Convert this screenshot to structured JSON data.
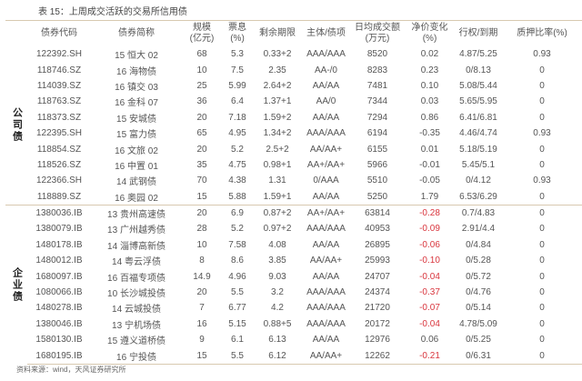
{
  "title": "表 15：上周成交活跃的交易所信用债",
  "headers": [
    "债券代码",
    "债券简称",
    "规模\n(亿元)",
    "票息\n(%)",
    "剩余期限",
    "主体/债项",
    "日均成交额\n(万元)",
    "净价变化\n(%)",
    "行权/到期",
    "质押比率(%)"
  ],
  "sections": [
    {
      "category": "公司债",
      "rows": [
        [
          "122392.SH",
          "15 恒大 02",
          "68",
          "5.3",
          "0.33+2",
          "AAA/AAA",
          "8520",
          "0.02",
          "4.87/5.25",
          "0.93"
        ],
        [
          "118746.SZ",
          "16 海物债",
          "10",
          "7.5",
          "2.35",
          "AA-/0",
          "8283",
          "0.23",
          "0/8.13",
          "0"
        ],
        [
          "114039.SZ",
          "16 镇交 03",
          "25",
          "5.99",
          "2.64+2",
          "AA/AA",
          "7481",
          "0.10",
          "5.08/5.44",
          "0"
        ],
        [
          "118763.SZ",
          "16 金科 07",
          "36",
          "6.4",
          "1.37+1",
          "AA/0",
          "7344",
          "0.03",
          "5.65/5.95",
          "0"
        ],
        [
          "118373.SZ",
          "15 安城债",
          "20",
          "7.18",
          "1.59+2",
          "AA/AA",
          "7294",
          "0.86",
          "6.41/6.81",
          "0"
        ],
        [
          "122395.SH",
          "15 富力债",
          "65",
          "4.95",
          "1.34+2",
          "AAA/AAA",
          "6194",
          "-0.35",
          "4.46/4.74",
          "0.93"
        ],
        [
          "118854.SZ",
          "16 文旅 02",
          "20",
          "5.2",
          "2.5+2",
          "AA/AA+",
          "6155",
          "0.01",
          "5.18/5.19",
          "0"
        ],
        [
          "118526.SZ",
          "16 中置 01",
          "35",
          "4.75",
          "0.98+1",
          "AA+/AA+",
          "5966",
          "-0.01",
          "5.45/5.1",
          "0"
        ],
        [
          "122366.SH",
          "14 武钢债",
          "70",
          "4.38",
          "1.31",
          "0/AAA",
          "5510",
          "-0.05",
          "0/4.12",
          "0.93"
        ],
        [
          "118889.SZ",
          "16 奥园 02",
          "15",
          "5.88",
          "1.59+1",
          "AA/AA",
          "5250",
          "1.79",
          "6.53/6.29",
          "0"
        ]
      ]
    },
    {
      "category": "企业债",
      "rows": [
        [
          "1380036.IB",
          "13 贵州高速债",
          "20",
          "6.9",
          "0.87+2",
          "AA+/AA+",
          "63814",
          "-0.28",
          "0.7/4.83",
          "0"
        ],
        [
          "1380079.IB",
          "13 广州越秀债",
          "28",
          "5.2",
          "0.97+2",
          "AAA/AAA",
          "40953",
          "-0.09",
          "2.91/4.4",
          "0"
        ],
        [
          "1480178.IB",
          "14 淄博高新债",
          "10",
          "7.58",
          "4.08",
          "AA/AA",
          "26895",
          "-0.06",
          "0/4.84",
          "0"
        ],
        [
          "1480012.IB",
          "14 粤云浮债",
          "8",
          "8.6",
          "3.85",
          "AA/AA+",
          "25993",
          "-0.10",
          "0/5.28",
          "0"
        ],
        [
          "1680097.IB",
          "16 百福专项债",
          "14.9",
          "4.96",
          "9.03",
          "AA/AA",
          "24707",
          "-0.04",
          "0/5.72",
          "0"
        ],
        [
          "1080066.IB",
          "10 长沙城投债",
          "20",
          "5.5",
          "3.2",
          "AAA/AAA",
          "24374",
          "-0.37",
          "0/4.76",
          "0"
        ],
        [
          "1480278.IB",
          "14 云城投债",
          "7",
          "6.77",
          "4.2",
          "AAA/AAA",
          "21720",
          "-0.07",
          "0/5.14",
          "0"
        ],
        [
          "1380046.IB",
          "13 宁机场债",
          "16",
          "5.15",
          "0.88+5",
          "AAA/AAA",
          "20172",
          "-0.04",
          "4.78/5.09",
          "0"
        ],
        [
          "1580130.IB",
          "15 遵义道桥债",
          "9",
          "6.1",
          "6.13",
          "AA/AA",
          "12976",
          "0.06",
          "0/5.25",
          "0"
        ],
        [
          "1680195.IB",
          "16 宁投债",
          "15",
          "5.5",
          "6.12",
          "AA/AA+",
          "12262",
          "-0.21",
          "0/6.31",
          "0"
        ]
      ]
    }
  ],
  "negative_color": "#d9363e",
  "footer": "资料来源：wind，天风证券研究所"
}
